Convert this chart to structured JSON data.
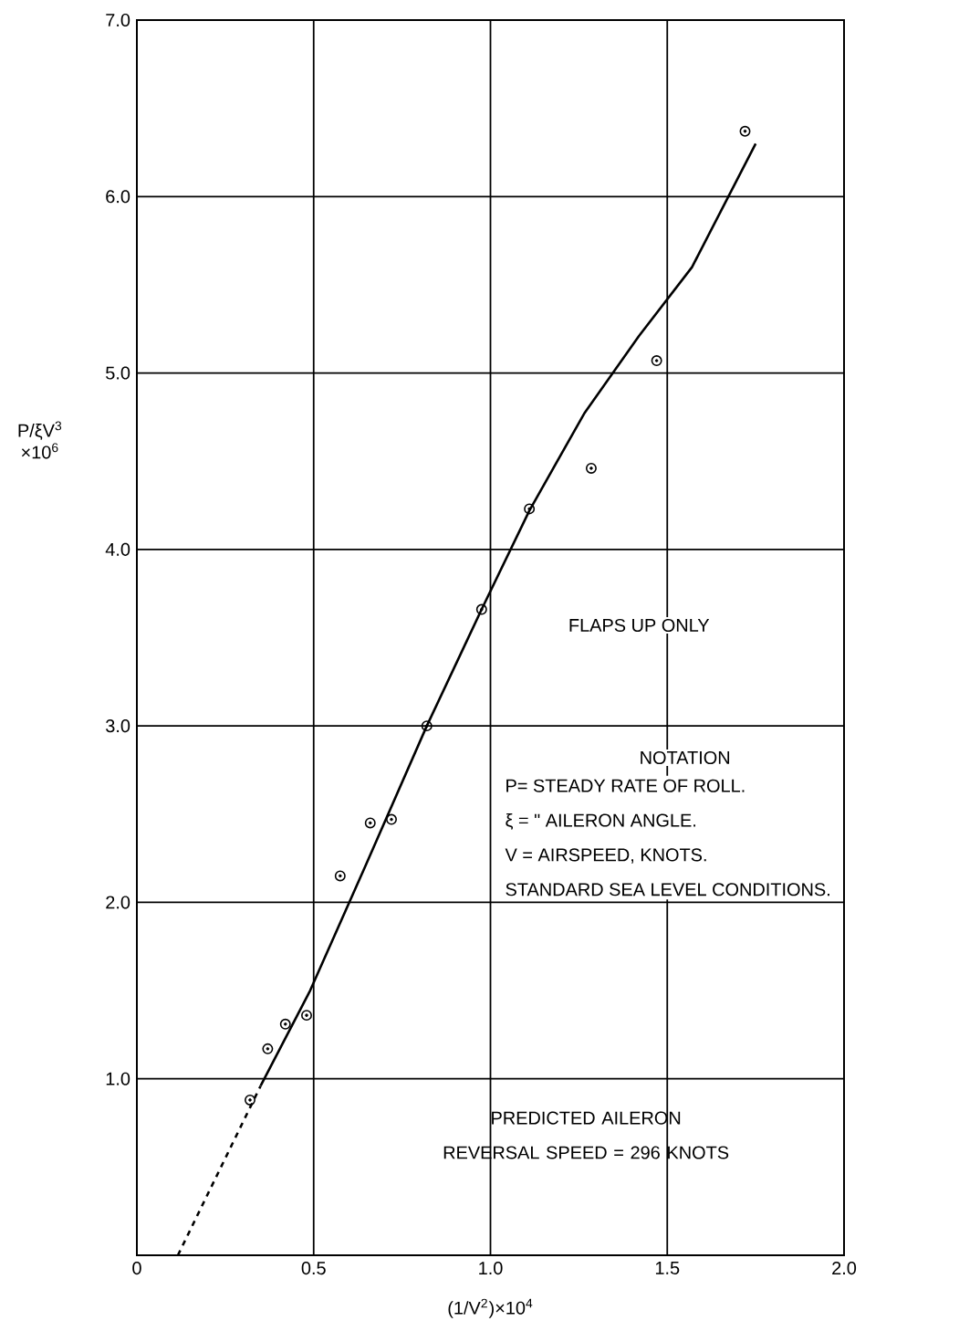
{
  "chart_data": {
    "type": "scatter",
    "xlabel": "(1/V$^{2}$)×10$^{4}$",
    "ylabel": "P/ξV$^{3}$ ×10$^{6}$",
    "xlim": [
      0,
      2.0
    ],
    "ylim": [
      0,
      7.0
    ],
    "xticks": [
      0,
      {
        "value": 0.5,
        "label": "0.5"
      },
      {
        "value": 1.0,
        "label": "1.0"
      },
      {
        "value": 1.5,
        "label": "1.5"
      },
      {
        "value": 2.0,
        "label": "2.0"
      }
    ],
    "yticks": [
      {
        "value": 1.0,
        "label": "1.0"
      },
      {
        "value": 2.0,
        "label": "2.0"
      },
      {
        "value": 3.0,
        "label": "3.0"
      },
      {
        "value": 4.0,
        "label": "4.0"
      },
      {
        "value": 5.0,
        "label": "5.0"
      },
      {
        "value": 6.0,
        "label": "6.0"
      },
      {
        "value": 7.0,
        "label": "7.0"
      }
    ],
    "grid": true,
    "series": [
      {
        "marker": "circle",
        "color": "#000000",
        "x": [
          0.32,
          0.37,
          0.42,
          0.48,
          0.575,
          0.66,
          0.72,
          0.82,
          0.975,
          1.11,
          1.285,
          1.47,
          1.72
        ],
        "values": [
          0.88,
          1.17,
          1.31,
          1.36,
          2.15,
          2.45,
          2.47,
          3.0,
          3.66,
          4.23,
          4.46,
          5.07,
          6.37
        ]
      },
      {
        "type": "line",
        "line_style": "solid",
        "color": "#000000",
        "x": [
          0.35,
          0.49,
          0.645,
          0.82,
          0.975,
          1.11,
          1.265,
          1.42,
          1.57,
          1.75
        ],
        "values": [
          0.96,
          1.5,
          2.2,
          3.0,
          3.66,
          4.22,
          4.77,
          5.21,
          5.6,
          6.3
        ]
      },
      {
        "type": "line",
        "line_style": "dashed",
        "color": "#000000",
        "x": [
          0.116,
          0.35
        ],
        "values": [
          0.0,
          0.96
        ]
      }
    ],
    "annotations": [
      "FLAPS UP ONLY",
      "NOTATION",
      "P= STEADY RATE OF ROLL.",
      "ξ = \" AILERON ANGLE.",
      "V = AIRSPEED, KNOTS.",
      "STANDARD SEA LEVEL CONDITIONS.",
      "PREDICTED AILERON REVERSAL SPEED = 296 KNOTS"
    ]
  }
}
